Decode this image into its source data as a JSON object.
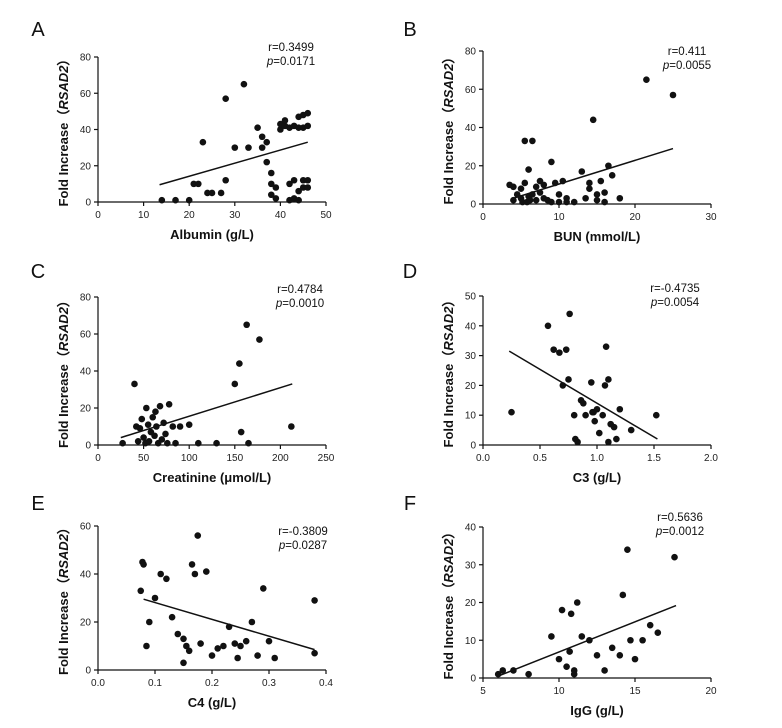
{
  "chart_data": [
    {
      "type": "scatter",
      "panel": "A",
      "xlabel": "Albumin (g/L)",
      "ylabel_prefix": "Fold Increase（",
      "ylabel_gene": "RSAD2",
      "ylabel_suffix": "）",
      "r_text": "r=0.3499",
      "p_label": "p",
      "p_value": "=0.0171",
      "xlim": [
        0,
        50
      ],
      "ylim": [
        0,
        80
      ],
      "xticks": [
        0,
        10,
        20,
        30,
        40,
        50
      ],
      "yticks": [
        0,
        20,
        40,
        60,
        80
      ],
      "trend": [
        [
          13.5,
          9.5
        ],
        [
          46,
          33
        ]
      ],
      "points": [
        [
          14,
          1
        ],
        [
          17,
          1
        ],
        [
          20,
          1
        ],
        [
          21,
          10
        ],
        [
          22,
          10
        ],
        [
          23,
          33
        ],
        [
          24,
          5
        ],
        [
          25,
          5
        ],
        [
          27,
          5
        ],
        [
          28,
          12
        ],
        [
          28,
          57
        ],
        [
          30,
          30
        ],
        [
          32,
          65
        ],
        [
          33,
          30
        ],
        [
          35,
          41
        ],
        [
          36,
          36
        ],
        [
          36,
          30
        ],
        [
          37,
          33
        ],
        [
          37,
          22
        ],
        [
          38,
          16
        ],
        [
          38,
          10
        ],
        [
          38,
          4
        ],
        [
          39,
          2
        ],
        [
          39,
          8
        ],
        [
          40,
          40
        ],
        [
          40,
          43
        ],
        [
          41,
          42
        ],
        [
          41,
          45
        ],
        [
          42,
          41
        ],
        [
          42,
          1
        ],
        [
          42,
          10
        ],
        [
          43,
          42
        ],
        [
          43,
          2
        ],
        [
          43,
          12
        ],
        [
          44,
          47
        ],
        [
          44,
          41
        ],
        [
          44,
          1
        ],
        [
          44,
          6
        ],
        [
          45,
          41
        ],
        [
          45,
          8
        ],
        [
          45,
          12
        ],
        [
          45,
          48
        ],
        [
          46,
          42
        ],
        [
          46,
          49
        ],
        [
          46,
          8
        ],
        [
          46,
          12
        ]
      ]
    },
    {
      "type": "scatter",
      "panel": "B",
      "xlabel": "BUN (mmol/L)",
      "ylabel_prefix": "Fold Increase（",
      "ylabel_gene": "RSAD2",
      "ylabel_suffix": "）",
      "r_text": "r=0.411",
      "p_label": "p",
      "p_value": "=0.0055",
      "xlim": [
        0,
        30
      ],
      "ylim": [
        0,
        80
      ],
      "xticks": [
        0,
        10,
        20,
        30
      ],
      "yticks": [
        0,
        20,
        40,
        60,
        80
      ],
      "trend": [
        [
          4,
          3
        ],
        [
          25,
          29
        ]
      ],
      "points": [
        [
          3.5,
          10
        ],
        [
          4,
          2
        ],
        [
          4,
          9
        ],
        [
          4.5,
          5
        ],
        [
          5,
          3
        ],
        [
          5,
          8
        ],
        [
          5.2,
          1
        ],
        [
          5.5,
          11
        ],
        [
          5.5,
          33
        ],
        [
          5.8,
          1
        ],
        [
          6,
          4
        ],
        [
          6,
          18
        ],
        [
          6.2,
          2
        ],
        [
          6.5,
          33
        ],
        [
          6.5,
          5
        ],
        [
          7,
          9
        ],
        [
          7,
          2
        ],
        [
          7.5,
          12
        ],
        [
          7.5,
          6
        ],
        [
          8,
          10
        ],
        [
          8,
          3
        ],
        [
          8.5,
          2
        ],
        [
          9,
          22
        ],
        [
          9,
          1
        ],
        [
          9.5,
          11
        ],
        [
          10,
          1
        ],
        [
          10,
          5
        ],
        [
          10.5,
          12
        ],
        [
          11,
          3
        ],
        [
          11,
          1
        ],
        [
          12,
          1
        ],
        [
          13,
          17
        ],
        [
          13.5,
          3
        ],
        [
          14,
          11
        ],
        [
          14,
          8
        ],
        [
          14.5,
          44
        ],
        [
          15,
          5
        ],
        [
          15,
          2
        ],
        [
          15.5,
          12
        ],
        [
          16,
          6
        ],
        [
          16,
          1
        ],
        [
          16.5,
          20
        ],
        [
          17,
          15
        ],
        [
          18,
          3
        ],
        [
          21.5,
          65
        ],
        [
          25,
          57
        ]
      ]
    },
    {
      "type": "scatter",
      "panel": "C",
      "xlabel": "Creatinine (μmol/L)",
      "ylabel_prefix": "Fold Increase（",
      "ylabel_gene": "RSAD2",
      "ylabel_suffix": "）",
      "r_text": "r=0.4784",
      "p_label": "p",
      "p_value": "=0.0010",
      "xlim": [
        0,
        250
      ],
      "ylim": [
        0,
        80
      ],
      "xticks": [
        0,
        50,
        100,
        150,
        200,
        250
      ],
      "yticks": [
        0,
        20,
        40,
        60,
        80
      ],
      "trend": [
        [
          25,
          4
        ],
        [
          213,
          33
        ]
      ],
      "points": [
        [
          27,
          1
        ],
        [
          40,
          33
        ],
        [
          42,
          10
        ],
        [
          44,
          2
        ],
        [
          46,
          9
        ],
        [
          48,
          14
        ],
        [
          50,
          4
        ],
        [
          52,
          1
        ],
        [
          53,
          20
        ],
        [
          55,
          11
        ],
        [
          56,
          2
        ],
        [
          58,
          7
        ],
        [
          60,
          15
        ],
        [
          62,
          5
        ],
        [
          63,
          18
        ],
        [
          64,
          10
        ],
        [
          66,
          1
        ],
        [
          68,
          21
        ],
        [
          70,
          3
        ],
        [
          72,
          12
        ],
        [
          74,
          6
        ],
        [
          76,
          1
        ],
        [
          78,
          22
        ],
        [
          82,
          10
        ],
        [
          85,
          1
        ],
        [
          90,
          10
        ],
        [
          100,
          11
        ],
        [
          110,
          1
        ],
        [
          130,
          1
        ],
        [
          150,
          33
        ],
        [
          155,
          44
        ],
        [
          157,
          7
        ],
        [
          163,
          65
        ],
        [
          165,
          1
        ],
        [
          177,
          57
        ],
        [
          212,
          10
        ]
      ]
    },
    {
      "type": "scatter",
      "panel": "D",
      "xlabel": "C3 (g/L)",
      "ylabel_prefix": "Fold Increase（",
      "ylabel_gene": "RSAD2",
      "ylabel_suffix": "）",
      "r_text": "r=-0.4735",
      "p_label": "p",
      "p_value": "=0.0054",
      "xlim": [
        0,
        2.0
      ],
      "ylim": [
        0,
        50
      ],
      "xticks": [
        0,
        0.5,
        1.0,
        1.5,
        2.0
      ],
      "xtick_labels": [
        "0.0",
        "0.5",
        "1.0",
        "1.5",
        "2.0"
      ],
      "yticks": [
        0,
        10,
        20,
        30,
        40,
        50
      ],
      "trend": [
        [
          0.23,
          31.5
        ],
        [
          1.53,
          2
        ]
      ],
      "points": [
        [
          0.25,
          11
        ],
        [
          0.57,
          40
        ],
        [
          0.62,
          32
        ],
        [
          0.67,
          31
        ],
        [
          0.7,
          20
        ],
        [
          0.73,
          32
        ],
        [
          0.75,
          22
        ],
        [
          0.76,
          44
        ],
        [
          0.8,
          10
        ],
        [
          0.81,
          2
        ],
        [
          0.83,
          1
        ],
        [
          0.86,
          15
        ],
        [
          0.88,
          14
        ],
        [
          0.9,
          10
        ],
        [
          0.95,
          21
        ],
        [
          0.96,
          11
        ],
        [
          0.97,
          11
        ],
        [
          0.98,
          8
        ],
        [
          1.0,
          12
        ],
        [
          1.02,
          4
        ],
        [
          1.05,
          10
        ],
        [
          1.07,
          20
        ],
        [
          1.08,
          33
        ],
        [
          1.1,
          22
        ],
        [
          1.1,
          1
        ],
        [
          1.12,
          7
        ],
        [
          1.15,
          6
        ],
        [
          1.17,
          2
        ],
        [
          1.2,
          12
        ],
        [
          1.3,
          5
        ],
        [
          1.52,
          10
        ]
      ]
    },
    {
      "type": "scatter",
      "panel": "E",
      "xlabel": "C4 (g/L)",
      "ylabel_prefix": "Fold Increase（",
      "ylabel_gene": "RSAD2",
      "ylabel_suffix": "）",
      "r_text": "r=-0.3809",
      "p_label": "p",
      "p_value": "=0.0287",
      "xlim": [
        0,
        0.4
      ],
      "ylim": [
        0,
        60
      ],
      "xticks": [
        0,
        0.1,
        0.2,
        0.3,
        0.4
      ],
      "xtick_labels": [
        "0.0",
        "0.1",
        "0.2",
        "0.3",
        "0.4"
      ],
      "yticks": [
        0,
        20,
        40,
        60
      ],
      "trend": [
        [
          0.08,
          29.5
        ],
        [
          0.38,
          8.5
        ]
      ],
      "points": [
        [
          0.075,
          33
        ],
        [
          0.078,
          45
        ],
        [
          0.08,
          44
        ],
        [
          0.085,
          10
        ],
        [
          0.09,
          20
        ],
        [
          0.1,
          30
        ],
        [
          0.11,
          40
        ],
        [
          0.12,
          38
        ],
        [
          0.13,
          22
        ],
        [
          0.14,
          15
        ],
        [
          0.15,
          13
        ],
        [
          0.15,
          3
        ],
        [
          0.155,
          10
        ],
        [
          0.16,
          8
        ],
        [
          0.165,
          44
        ],
        [
          0.17,
          40
        ],
        [
          0.175,
          56
        ],
        [
          0.18,
          11
        ],
        [
          0.19,
          41
        ],
        [
          0.2,
          6
        ],
        [
          0.21,
          9
        ],
        [
          0.22,
          10
        ],
        [
          0.23,
          18
        ],
        [
          0.24,
          11
        ],
        [
          0.245,
          5
        ],
        [
          0.25,
          10
        ],
        [
          0.26,
          12
        ],
        [
          0.27,
          20
        ],
        [
          0.28,
          6
        ],
        [
          0.29,
          34
        ],
        [
          0.3,
          12
        ],
        [
          0.31,
          5
        ],
        [
          0.38,
          29
        ],
        [
          0.38,
          7
        ]
      ]
    },
    {
      "type": "scatter",
      "panel": "F",
      "xlabel": "IgG (g/L)",
      "ylabel_prefix": "Fold Increase（",
      "ylabel_gene": "RSAD2",
      "ylabel_suffix": "）",
      "r_text": "r=0.5636",
      "p_label": "p",
      "p_value": "=0.0012",
      "xlim": [
        5,
        20
      ],
      "ylim": [
        0,
        40
      ],
      "xticks": [
        5,
        10,
        15,
        20
      ],
      "yticks": [
        0,
        10,
        20,
        30,
        40
      ],
      "trend": [
        [
          6,
          0.5
        ],
        [
          17.7,
          19.2
        ]
      ],
      "points": [
        [
          6,
          1
        ],
        [
          6.3,
          2
        ],
        [
          7,
          2
        ],
        [
          8,
          1
        ],
        [
          9.5,
          11
        ],
        [
          10,
          5
        ],
        [
          10.2,
          18
        ],
        [
          10.5,
          3
        ],
        [
          10.7,
          7
        ],
        [
          10.8,
          17
        ],
        [
          11,
          2
        ],
        [
          11,
          1
        ],
        [
          11.2,
          20
        ],
        [
          11.5,
          11
        ],
        [
          12,
          10
        ],
        [
          12.5,
          6
        ],
        [
          13,
          2
        ],
        [
          13.5,
          8
        ],
        [
          14,
          6
        ],
        [
          14.2,
          22
        ],
        [
          14.5,
          34
        ],
        [
          14.7,
          10
        ],
        [
          15,
          5
        ],
        [
          15.5,
          10
        ],
        [
          16,
          14
        ],
        [
          16.5,
          12
        ],
        [
          17.6,
          32
        ]
      ]
    }
  ]
}
